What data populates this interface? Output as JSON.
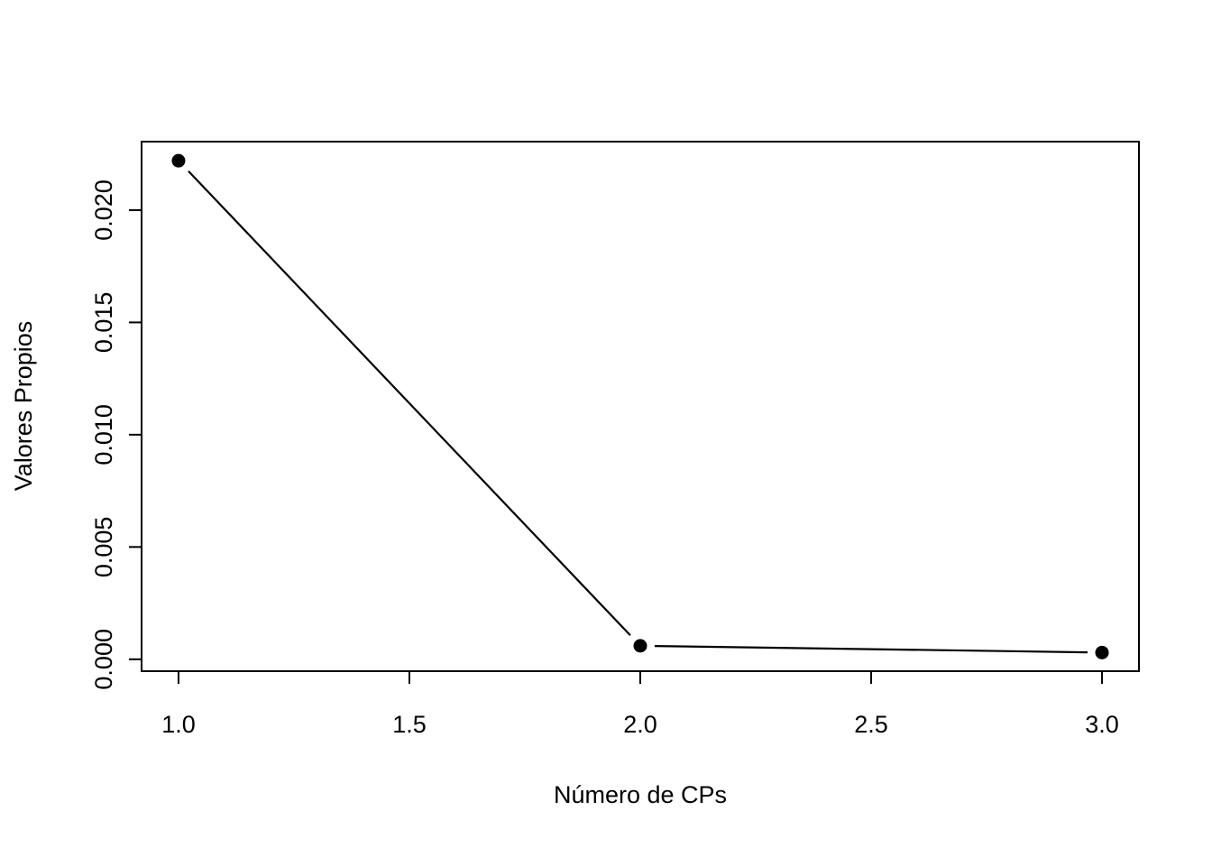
{
  "chart_data": {
    "type": "line",
    "title": "",
    "xlabel": "Número de CPs",
    "ylabel": "Valores Propios",
    "x": [
      1.0,
      2.0,
      3.0
    ],
    "series": [
      {
        "values": [
          0.0222,
          0.0006,
          0.0003
        ]
      }
    ],
    "xlim": [
      0.92,
      3.08
    ],
    "ylim": [
      -0.00053,
      0.02305
    ],
    "x_ticks": [
      1.0,
      1.5,
      2.0,
      2.5,
      3.0
    ],
    "x_tick_labels": [
      "1.0",
      "1.5",
      "2.0",
      "2.5",
      "3.0"
    ],
    "y_ticks": [
      0.0,
      0.005,
      0.01,
      0.015,
      0.02
    ],
    "y_tick_labels": [
      "0.000",
      "0.005",
      "0.010",
      "0.015",
      "0.020"
    ],
    "grid": false,
    "legend": "none",
    "line_color": "#000000",
    "marker": "filled-circle",
    "colors": {
      "line": "#000000",
      "marker": "#000000",
      "frame": "#000000",
      "background": "#ffffff"
    }
  }
}
